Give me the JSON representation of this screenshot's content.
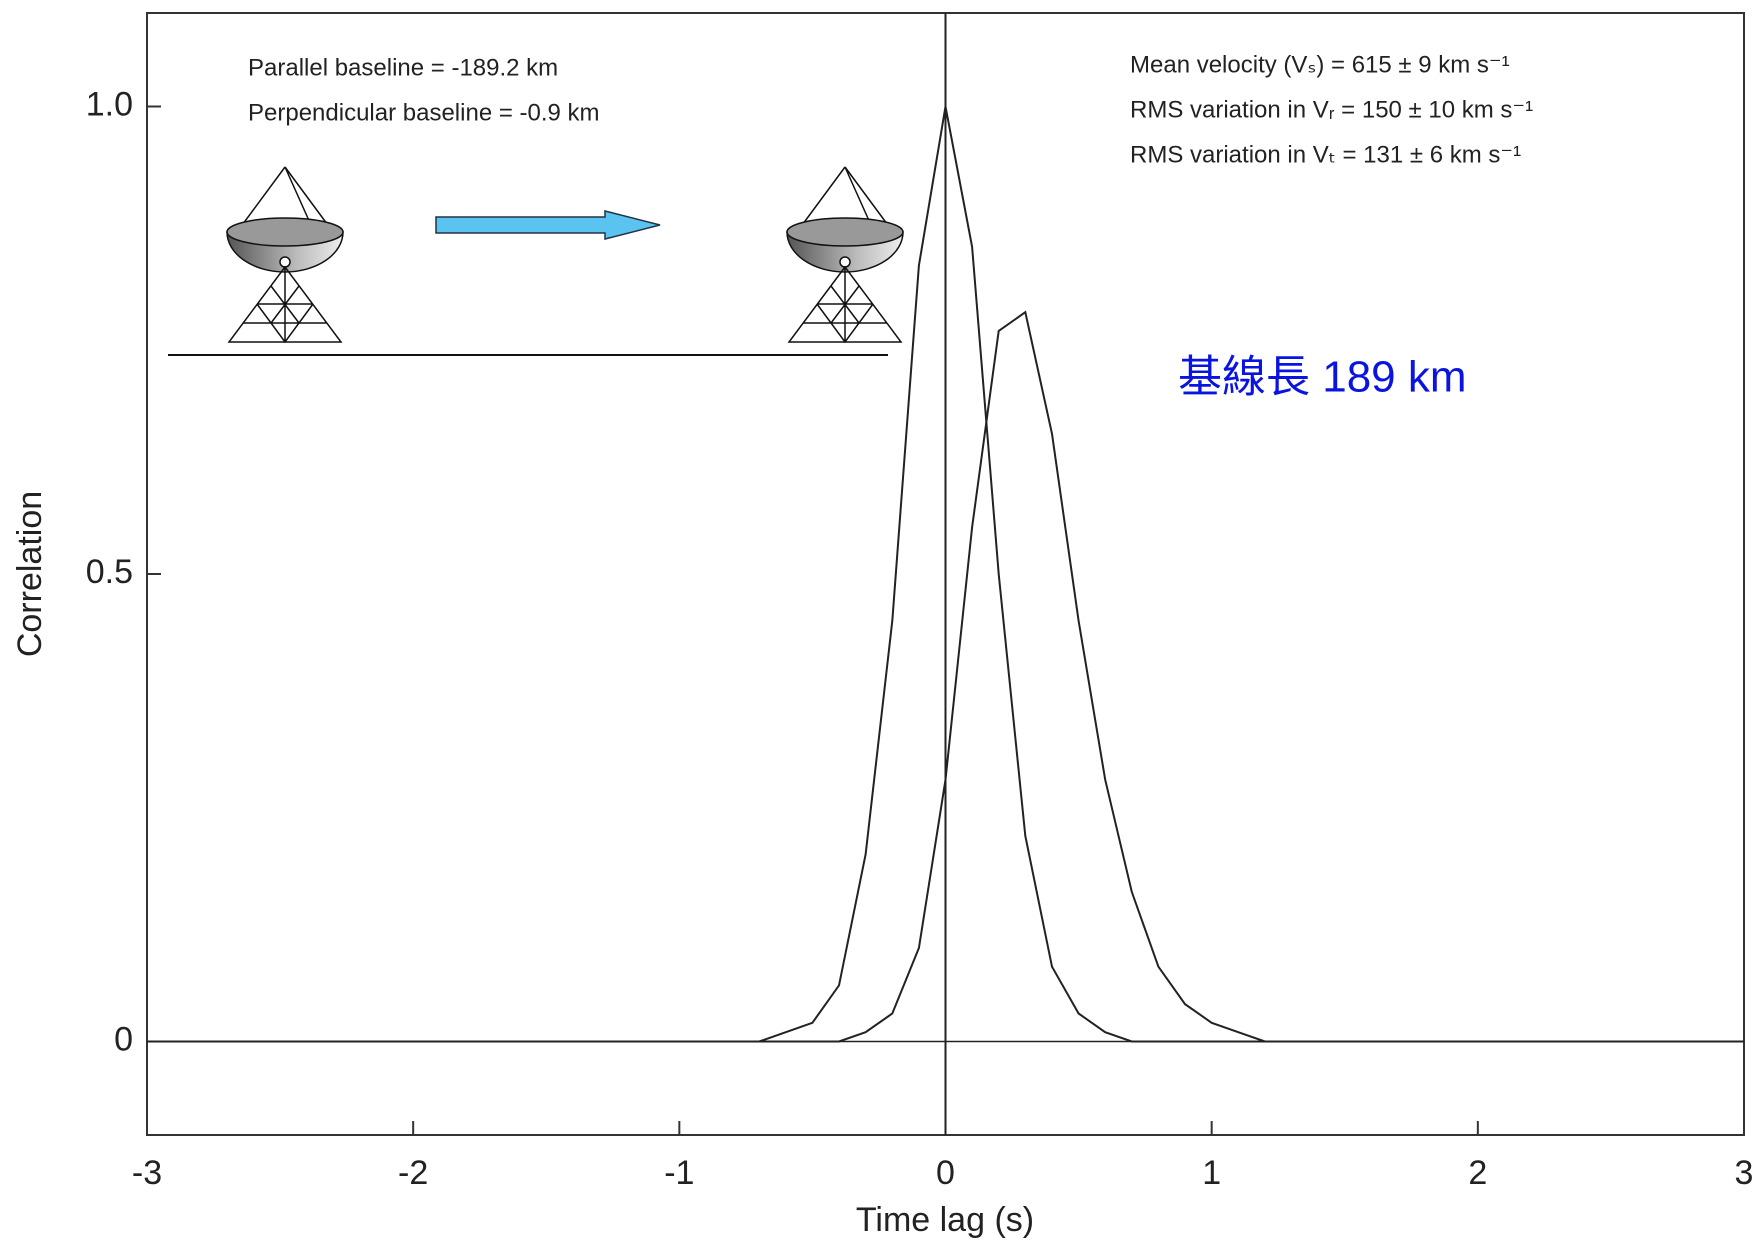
{
  "chart_data": {
    "type": "line",
    "x_label": "Time lag (s)",
    "y_label": "Correlation",
    "annotations": [
      "Parallel baseline = -189.2 km",
      "Perpendicular baseline = -0.9 km",
      "Mean velocity (Vₛ) = 615 ± 9 km s⁻¹",
      "RMS variation in Vᵣ = 150 ± 10 km s⁻¹",
      "RMS variation in Vₜ = 131 ± 6 km s⁻¹",
      "基線長 189 km"
    ],
    "x": [
      -3,
      -2.9,
      -2.8,
      -2.7,
      -2.6,
      -2.5,
      -2.4,
      -2.3,
      -2.2,
      -2.1,
      -2,
      -1.9,
      -1.8,
      -1.7,
      -1.6,
      -1.5,
      -1.4,
      -1.3,
      -1.2,
      -1.1,
      -1,
      -0.9,
      -0.8,
      -0.7,
      -0.6,
      -0.5,
      -0.4,
      -0.3,
      -0.2,
      -0.1,
      0,
      0.1,
      0.2,
      0.3,
      0.4,
      0.5,
      0.6,
      0.7,
      0.8,
      0.9,
      1,
      1.1,
      1.2,
      1.3,
      1.4,
      1.5,
      1.6,
      1.7,
      1.8,
      1.9,
      2,
      2.1,
      2.2,
      2.3,
      2.4,
      2.5,
      2.6,
      2.7,
      2.8,
      2.9,
      3
    ],
    "series": [
      {
        "color": "#222222",
        "values": [
          0,
          0,
          0,
          0,
          0,
          0,
          0,
          0,
          0,
          0,
          0,
          0,
          0,
          0,
          0,
          0,
          0,
          0,
          0,
          0,
          0,
          0,
          0,
          0,
          0.01,
          0.02,
          0.06,
          0.2,
          0.45,
          0.83,
          1.0,
          0.85,
          0.5,
          0.22,
          0.08,
          0.03,
          0.01,
          0,
          0,
          0,
          0,
          0,
          0,
          0,
          0,
          0,
          0,
          0,
          0,
          0,
          0,
          0,
          0,
          0,
          0,
          0,
          0,
          0,
          0,
          0,
          0
        ]
      },
      {
        "color": "#222222",
        "values": [
          0,
          0,
          0,
          0,
          0,
          0,
          0,
          0,
          0,
          0,
          0,
          0,
          0,
          0,
          0,
          0,
          0,
          0,
          0,
          0,
          0,
          0,
          0,
          0,
          0,
          0,
          0,
          0.01,
          0.03,
          0.1,
          0.28,
          0.55,
          0.76,
          0.78,
          0.65,
          0.45,
          0.28,
          0.16,
          0.08,
          0.04,
          0.02,
          0.01,
          0,
          0,
          0,
          0,
          0,
          0,
          0,
          0,
          0,
          0,
          0,
          0,
          0,
          0,
          0,
          0,
          0,
          0,
          0
        ]
      }
    ],
    "xlim": [
      -3,
      3
    ],
    "xticks": [
      -3,
      -2,
      -1,
      0,
      1,
      2,
      3
    ],
    "ylim": [
      -0.1,
      1.1
    ],
    "yticks": [
      0,
      0.5,
      {
        "value": 1,
        "label": "1.0"
      }
    ]
  }
}
